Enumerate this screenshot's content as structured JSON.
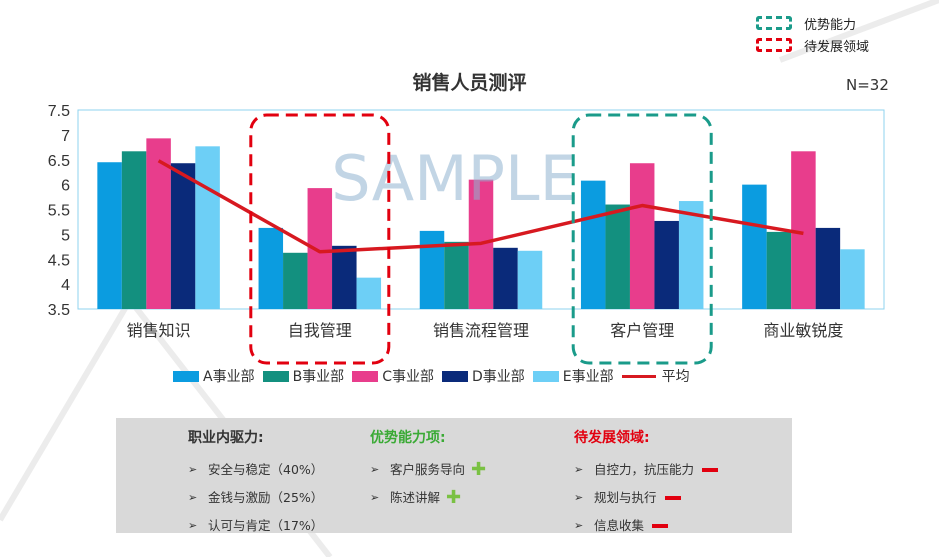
{
  "header": {
    "legend": [
      {
        "label": "优势能力",
        "color": "#1a9b8a"
      },
      {
        "label": "待发展领域",
        "color": "#e2000f"
      }
    ],
    "n_label": "N=32"
  },
  "chart_data": {
    "type": "bar",
    "title": "销售人员测评",
    "watermark": "SAMPLE",
    "categories": [
      "销售知识",
      "自我管理",
      "销售流程管理",
      "客户管理",
      "商业敏锐度"
    ],
    "series": [
      {
        "name": "A事业部",
        "color": "#0b9ce0",
        "values": [
          6.45,
          5.13,
          5.07,
          6.08,
          6.0
        ]
      },
      {
        "name": "B事业部",
        "color": "#13907f",
        "values": [
          6.67,
          4.63,
          4.85,
          5.6,
          5.05
        ]
      },
      {
        "name": "C事业部",
        "color": "#e83d8c",
        "values": [
          6.93,
          5.93,
          6.1,
          6.43,
          6.67
        ]
      },
      {
        "name": "D事业部",
        "color": "#0a2a7a",
        "values": [
          6.43,
          4.77,
          4.73,
          5.27,
          5.13
        ]
      },
      {
        "name": "E事业部",
        "color": "#6dcff6",
        "values": [
          6.77,
          4.13,
          4.67,
          5.67,
          4.7
        ]
      }
    ],
    "average": {
      "name": "平均",
      "color": "#d71920",
      "values": [
        6.48,
        4.65,
        4.82,
        5.58,
        5.02
      ]
    },
    "ylim": [
      3.5,
      7.5
    ],
    "yticks": [
      "3.5",
      "4",
      "4.5",
      "5",
      "5.5",
      "6",
      "6.5",
      "7",
      "7.5"
    ],
    "highlights": [
      {
        "category": "自我管理",
        "kind": "待发展领域",
        "color": "#e2000f"
      },
      {
        "category": "客户管理",
        "kind": "优势能力",
        "color": "#1a9b8a"
      }
    ]
  },
  "panel": {
    "col1": {
      "title": "职业内驱力:",
      "color": "#333333",
      "items": [
        "安全与稳定（40%）",
        "金钱与激励（25%）",
        "认可与肯定（17%）"
      ]
    },
    "col2": {
      "title": "优势能力项:",
      "color": "#3aaa35",
      "items": [
        "客户服务导向",
        "陈述讲解"
      ]
    },
    "col3": {
      "title": "待发展领域:",
      "color": "#e2000f",
      "items": [
        "自控力，抗压能力",
        "规划与执行",
        "信息收集"
      ]
    },
    "bullet": "➢"
  }
}
